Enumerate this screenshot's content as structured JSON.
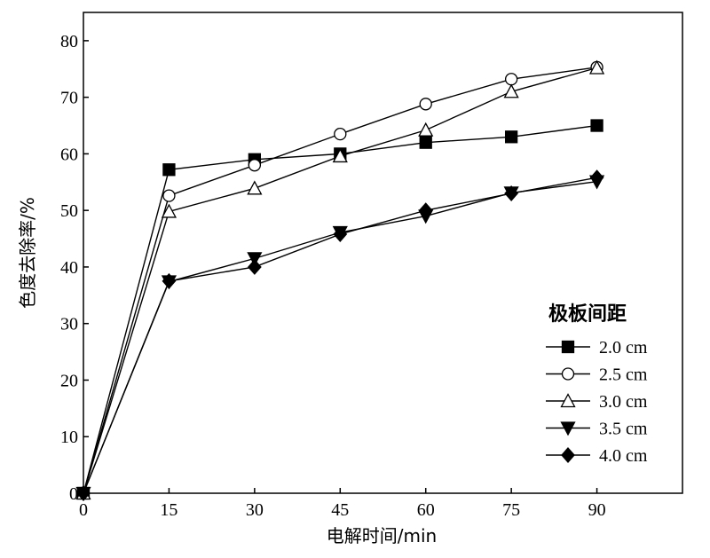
{
  "chart_data": {
    "type": "line",
    "title": "",
    "xlabel": "电解时间/min",
    "ylabel": "色度去除率/%",
    "x": [
      0,
      15,
      30,
      45,
      60,
      75,
      90
    ],
    "xlim": [
      0,
      105
    ],
    "ylim": [
      0,
      85
    ],
    "xticks": [
      0,
      15,
      30,
      45,
      60,
      75,
      90
    ],
    "yticks": [
      0,
      10,
      20,
      30,
      40,
      50,
      60,
      70,
      80
    ],
    "grid": false,
    "legend": {
      "title": "极板间距",
      "position": "right"
    },
    "series": [
      {
        "name": "2.0 cm",
        "marker": "square-filled",
        "values": [
          0,
          57.2,
          59.0,
          60.0,
          62.0,
          63.0,
          65.0
        ]
      },
      {
        "name": "2.5 cm",
        "marker": "circle-open",
        "values": [
          0,
          52.6,
          58.0,
          63.5,
          68.8,
          73.2,
          75.3
        ]
      },
      {
        "name": "3.0 cm",
        "marker": "triangle-open",
        "values": [
          0,
          49.8,
          53.9,
          59.6,
          64.2,
          71.0,
          75.2
        ]
      },
      {
        "name": "3.5 cm",
        "marker": "triangle-down-filled",
        "values": [
          0,
          37.4,
          41.5,
          46.1,
          49.0,
          53.1,
          55.1
        ]
      },
      {
        "name": "4.0 cm",
        "marker": "diamond-filled",
        "values": [
          0,
          37.5,
          40.0,
          45.8,
          50.0,
          53.0,
          55.8
        ]
      }
    ]
  }
}
